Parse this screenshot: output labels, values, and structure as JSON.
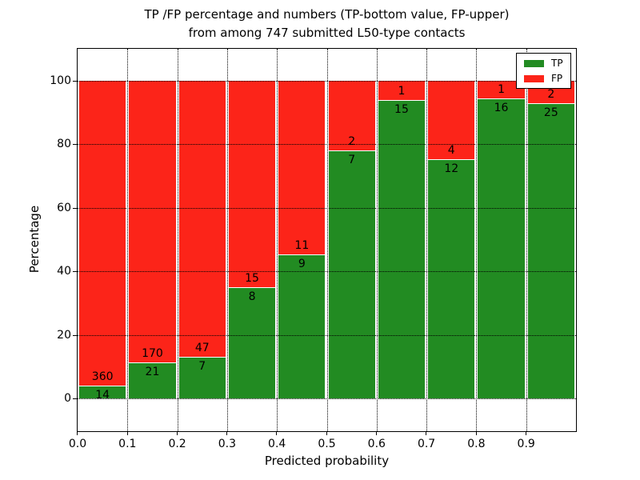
{
  "chart_data": {
    "type": "bar",
    "stacked": true,
    "title_line1": "TP /FP percentage and numbers (TP-bottom value, FP-upper)",
    "title_line2": "from among 747 submitted L50-type contacts",
    "xlabel": "Predicted probability",
    "ylabel": "Percentage",
    "total_contacts": 747,
    "bin_width": 0.1,
    "categories": [
      "0.0",
      "0.1",
      "0.2",
      "0.3",
      "0.4",
      "0.5",
      "0.6",
      "0.7",
      "0.8",
      "0.9"
    ],
    "series": [
      {
        "name": "TP",
        "color": "#228b22",
        "counts": [
          14,
          21,
          7,
          8,
          9,
          7,
          15,
          12,
          16,
          25
        ]
      },
      {
        "name": "FP",
        "color": "#fc2419",
        "counts": [
          360,
          170,
          47,
          15,
          11,
          2,
          1,
          4,
          1,
          2
        ]
      }
    ],
    "tp_percent": [
      3.7,
      11.0,
      13.0,
      34.8,
      45.0,
      77.8,
      93.8,
      75.0,
      94.1,
      92.6
    ],
    "xticks": [
      "0.0",
      "0.1",
      "0.2",
      "0.3",
      "0.4",
      "0.5",
      "0.6",
      "0.7",
      "0.8",
      "0.9"
    ],
    "yticks": [
      0,
      20,
      40,
      60,
      80,
      100
    ],
    "xlim": [
      0.0,
      1.0
    ],
    "ylim": [
      -10,
      110
    ],
    "grid": "dotted",
    "legend_position": "upper right"
  },
  "legend": {
    "items": [
      {
        "label": "TP",
        "color": "#228b22"
      },
      {
        "label": "FP",
        "color": "#fc2419"
      }
    ]
  }
}
